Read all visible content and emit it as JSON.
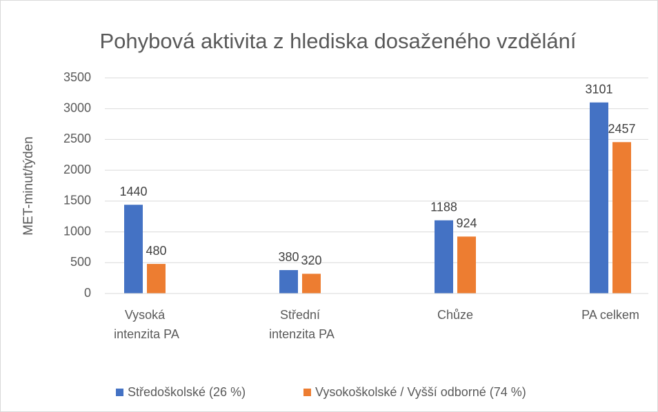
{
  "chart_data": {
    "type": "bar",
    "title": "Pohybová aktivita z hlediska dosaženého vzdělání",
    "y_label": "MET-minut/týden",
    "categories": [
      "Vysoká intenzita PA",
      "Střední intenzita PA",
      "Chůze",
      "PA celkem"
    ],
    "series": [
      {
        "name": "Středoškolské (26 %)",
        "color": "#4472c4",
        "values": [
          1440,
          380,
          1188,
          3101
        ]
      },
      {
        "name": "Vysokoškolské / Vyšší odborné (74 %)",
        "color": "#ed7d31",
        "values": [
          480,
          320,
          924,
          2457
        ]
      }
    ],
    "ylim": [
      0,
      3500
    ],
    "yticks": [
      0,
      500,
      1000,
      1500,
      2000,
      2500,
      3000,
      3500
    ],
    "grid": true
  }
}
